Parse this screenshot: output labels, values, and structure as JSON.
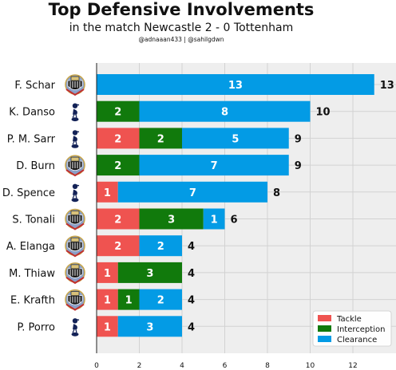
{
  "header": {
    "title": "Top Defensive Involvements",
    "subtitle": "in the match Newcastle 2 - 0 Tottenham",
    "credit": "@adnaaan433  | @sahilgdwn"
  },
  "chart_data": {
    "type": "bar",
    "orientation": "horizontal",
    "stacked": true,
    "categories": [
      "F. Schar",
      "K. Danso",
      "P. M. Sarr",
      "D. Burn",
      "D. Spence",
      "S. Tonali",
      "A. Elanga",
      "M. Thiaw",
      "E. Krafth",
      "P. Porro"
    ],
    "teams": [
      "newcastle",
      "tottenham",
      "tottenham",
      "newcastle",
      "tottenham",
      "newcastle",
      "newcastle",
      "newcastle",
      "newcastle",
      "tottenham"
    ],
    "series": [
      {
        "name": "Tackle",
        "color": "#ef5350",
        "values": [
          0,
          0,
          2,
          0,
          1,
          2,
          2,
          1,
          1,
          1
        ]
      },
      {
        "name": "Interception",
        "color": "#117a0c",
        "values": [
          0,
          2,
          2,
          2,
          0,
          3,
          0,
          3,
          1,
          0
        ]
      },
      {
        "name": "Clearance",
        "color": "#039be5",
        "values": [
          13,
          8,
          5,
          7,
          7,
          1,
          2,
          0,
          2,
          3
        ]
      }
    ],
    "totals": [
      13,
      10,
      9,
      9,
      8,
      6,
      4,
      4,
      4,
      4
    ],
    "xticks": [
      0,
      2,
      4,
      6,
      8,
      10,
      12
    ],
    "xlim": [
      0,
      13.3
    ],
    "grid": true,
    "legend_position": "lower-right"
  },
  "colors": {
    "plot_background": "#eeeeee",
    "grid": "#d2d2d2",
    "newcastle_primary": "#111111",
    "tottenham_primary": "#132257"
  }
}
